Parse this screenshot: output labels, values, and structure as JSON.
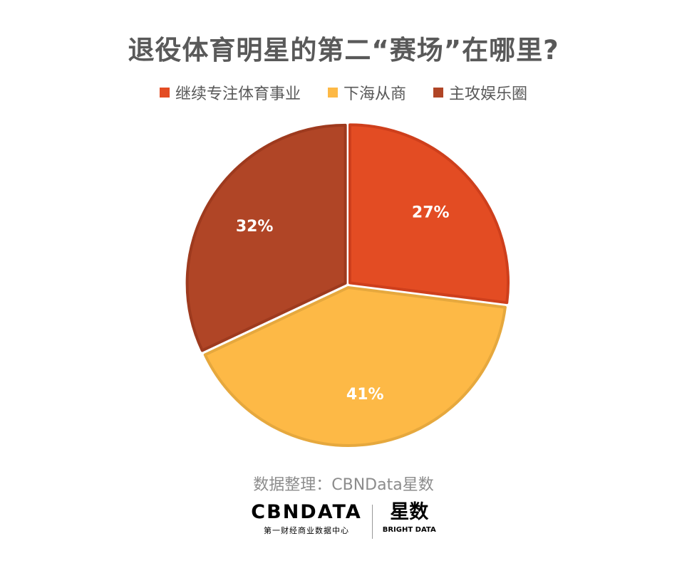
{
  "title": "退役体育明星的第二“赛场”在哪里?",
  "source": "数据整理：CBNData星数",
  "logo": {
    "brand": "CBNDATA",
    "brand_sub": "第一财经商业数据中心",
    "partner_cn": "星数",
    "partner_en": "BRIGHT DATA"
  },
  "chart_data": {
    "type": "pie",
    "categories": [
      "继续专注体育事业",
      "下海从商",
      "主攻娱乐圈"
    ],
    "values": [
      27,
      41,
      32
    ],
    "labels": [
      "27%",
      "41%",
      "32%"
    ],
    "colors": [
      "#E34C23",
      "#FDB946",
      "#B04526"
    ],
    "edge_colors": [
      "#CE3F1C",
      "#E6A83D",
      "#9E3A1E"
    ],
    "legend_position": "top",
    "start_angle": "12 o'clock, clockwise",
    "exploded": true
  }
}
